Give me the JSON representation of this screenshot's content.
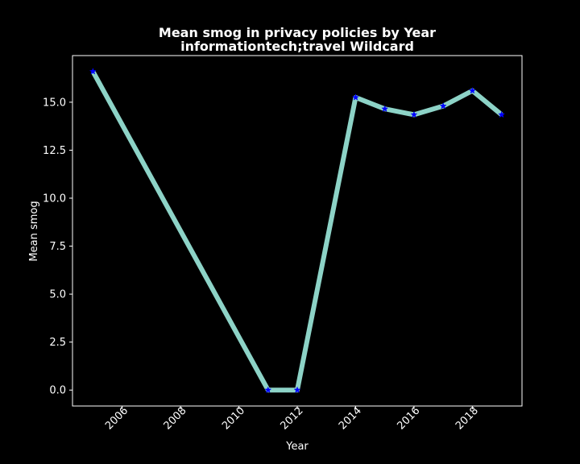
{
  "chart_data": {
    "type": "line",
    "title": "Mean smog in privacy policies by Year",
    "subtitle": "informationtech;travel Wildcard",
    "xlabel": "Year",
    "ylabel": "Mean smog",
    "x": [
      2005,
      2011,
      2012,
      2014,
      2015,
      2016,
      2017,
      2018,
      2019
    ],
    "series": [
      {
        "values": [
          16.6,
          0.0,
          0.0,
          15.25,
          14.65,
          14.35,
          14.8,
          15.6,
          14.35
        ],
        "color": "#8dd3c7",
        "marker": "star",
        "marker_color": "#0000ff"
      }
    ],
    "xlim": [
      2004.3,
      2019.7
    ],
    "ylim": [
      -0.83,
      17.43
    ],
    "xticks": [
      2006,
      2008,
      2010,
      2012,
      2014,
      2016,
      2018
    ],
    "xtick_labels": [
      "2006",
      "2008",
      "2010",
      "2012",
      "2014",
      "2016",
      "2018"
    ],
    "yticks": [
      0.0,
      2.5,
      5.0,
      7.5,
      10.0,
      12.5,
      15.0
    ],
    "ytick_labels": [
      "0.0",
      "2.5",
      "5.0",
      "7.5",
      "10.0",
      "12.5",
      "15.0"
    ],
    "grid": false,
    "background_color": "#000000",
    "axis_color": "#ffffff"
  }
}
